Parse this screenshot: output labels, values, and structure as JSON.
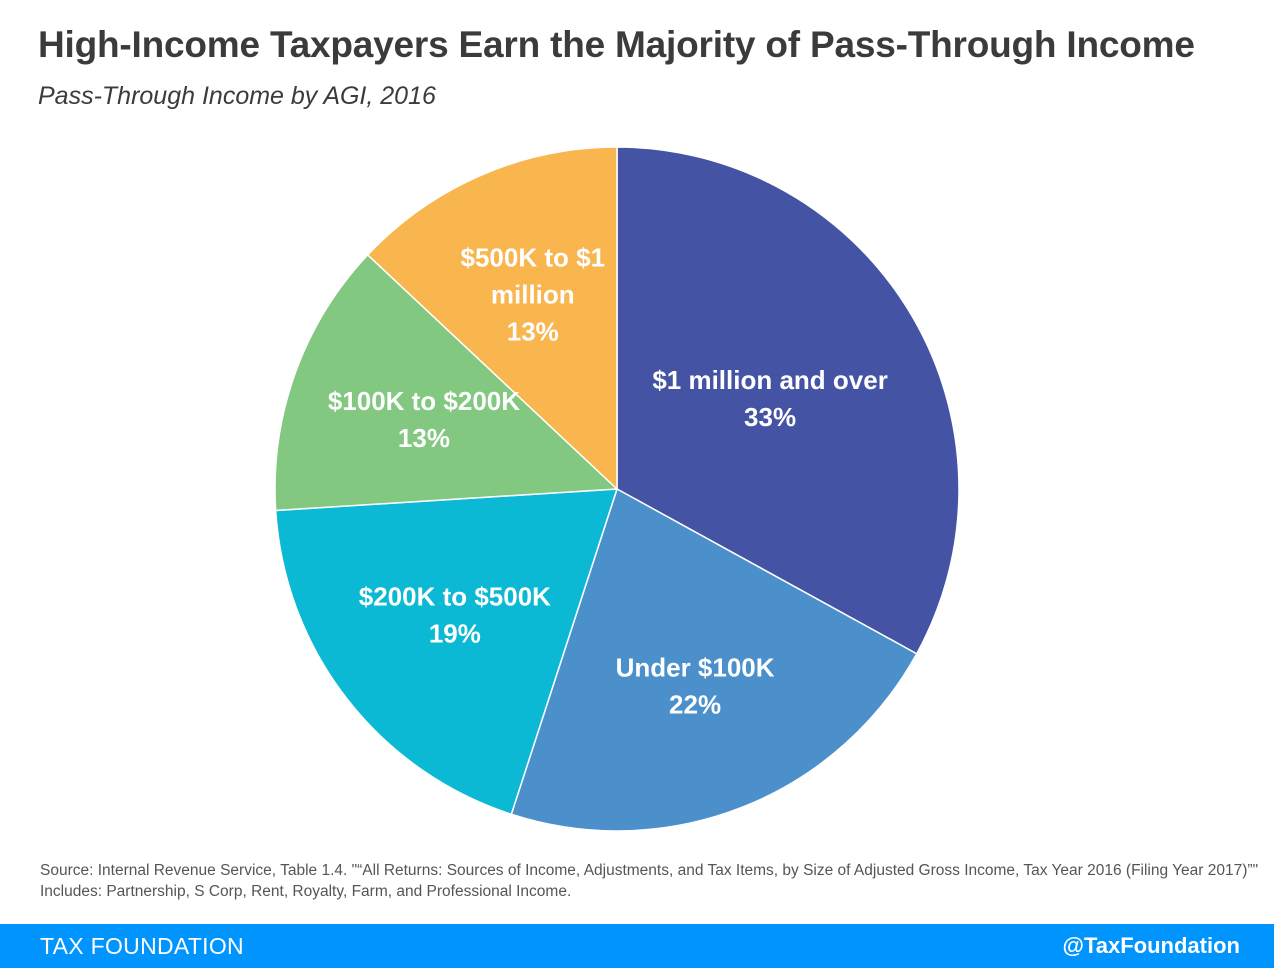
{
  "header": {
    "title": "High-Income Taxpayers Earn the Majority of Pass-Through Income",
    "subtitle": "Pass-Through Income by AGI, 2016"
  },
  "chart_data": {
    "type": "pie",
    "title": "High-Income Taxpayers Earn the Majority of Pass-Through Income",
    "subtitle": "Pass-Through Income by AGI, 2016",
    "slices": [
      {
        "label": "$1 million and over",
        "label_lines": [
          "$1 million and over"
        ],
        "value": 33,
        "value_label": "33%",
        "color": "#4453a3"
      },
      {
        "label": "Under $100K",
        "label_lines": [
          "Under $100K"
        ],
        "value": 22,
        "value_label": "22%",
        "color": "#4b8fcb"
      },
      {
        "label": "$200K to $500K",
        "label_lines": [
          "$200K to $500K"
        ],
        "value": 19,
        "value_label": "19%",
        "color": "#0bb9d4"
      },
      {
        "label": "$100K to $200K",
        "label_lines": [
          "$100K to $200K"
        ],
        "value": 13,
        "value_label": "13%",
        "color": "#82c881"
      },
      {
        "label": "$500K to $1 million",
        "label_lines": [
          "$500K to $1",
          "million"
        ],
        "value": 13,
        "value_label": "13%",
        "color": "#f9b54e"
      }
    ],
    "start_angle": "12 o'clock",
    "direction": "clockwise",
    "legend": "none"
  },
  "source_note": "Source: Internal Revenue Service, Table 1.4. \"“All Returns: Sources of Income, Adjustments, and Tax Items, by Size of Adjusted Gross Income, Tax Year 2016 (Filing Year 2017)”\" Includes: Partnership, S Corp, Rent, Royalty, Farm, and Professional Income.",
  "footer": {
    "brand": "TAX FOUNDATION",
    "handle": "@TaxFoundation",
    "bar_color": "#0094ff"
  }
}
